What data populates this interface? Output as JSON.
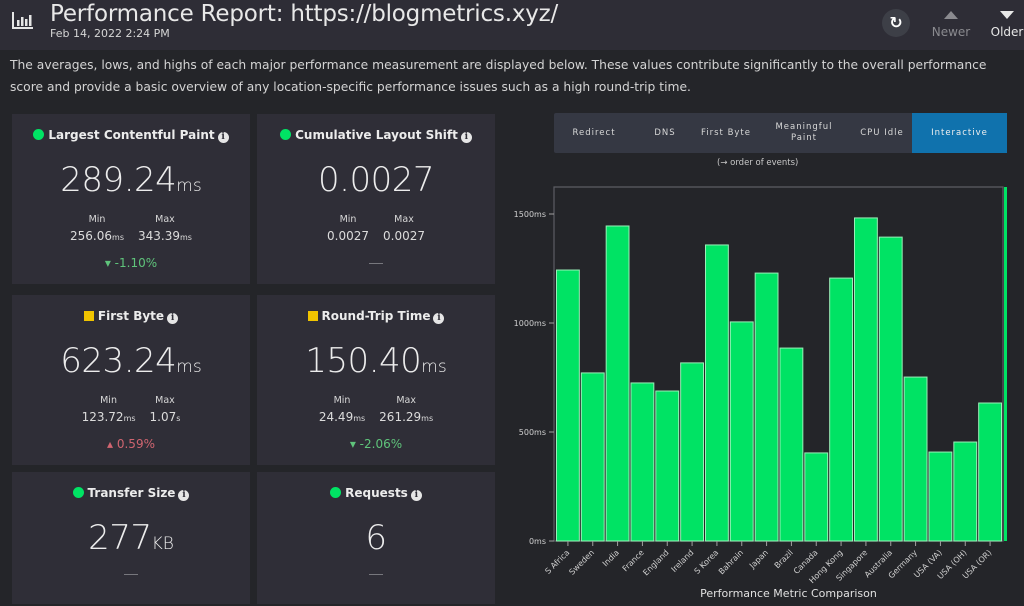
{
  "header": {
    "title": "Performance Report: https://blogmetrics.xyz/",
    "timestamp": "Feb 14, 2022 2:24 PM",
    "icons": {
      "logo": "bar-chart-icon",
      "refresh": "refresh-icon"
    },
    "refresh_glyph": "↻",
    "newer_label": "Newer",
    "older_label": "Older"
  },
  "description": "The averages, lows, and highs of each major performance measurement are displayed below. These values contribute significantly to the overall performance score and provide a basic overview of any location-specific performance issues such as a high round-trip time.",
  "colors": {
    "good": "#00e364",
    "warn": "#f0c400",
    "bad": "#d06570",
    "accent": "#1072ad"
  },
  "metrics": [
    {
      "title": "Largest Contentful Paint",
      "status": "good",
      "value": "289.24",
      "unit": "ms",
      "min_label": "Min",
      "max_label": "Max",
      "min": "256.06",
      "min_unit": "ms",
      "max": "343.39",
      "max_unit": "ms",
      "delta": "▾ -1.10%",
      "delta_trend": "good"
    },
    {
      "title": "Cumulative Layout Shift",
      "status": "good",
      "value": "0.0027",
      "unit": "",
      "min_label": "Min",
      "max_label": "Max",
      "min": "0.0027",
      "min_unit": "",
      "max": "0.0027",
      "max_unit": "",
      "delta": "—",
      "delta_trend": "none"
    },
    {
      "title": "First Byte",
      "status": "warn",
      "value": "623.24",
      "unit": "ms",
      "min_label": "Min",
      "max_label": "Max",
      "min": "123.72",
      "min_unit": "ms",
      "max": "1.07",
      "max_unit": "s",
      "delta": "▴ 0.59%",
      "delta_trend": "bad"
    },
    {
      "title": "Round-Trip Time",
      "status": "warn",
      "value": "150.40",
      "unit": "ms",
      "min_label": "Min",
      "max_label": "Max",
      "min": "24.49",
      "min_unit": "ms",
      "max": "261.29",
      "max_unit": "ms",
      "delta": "▾ -2.06%",
      "delta_trend": "good"
    },
    {
      "title": "Transfer Size",
      "status": "good",
      "value": "277",
      "unit": "KB",
      "delta": "—",
      "delta_trend": "none"
    },
    {
      "title": "Requests",
      "status": "good",
      "value": "6",
      "unit": "",
      "delta": "—",
      "delta_trend": "none"
    }
  ],
  "event_tabs": {
    "items": [
      {
        "label": "Redirect",
        "active": false
      },
      {
        "label": "DNS",
        "active": false
      },
      {
        "label": "First Byte",
        "active": false
      },
      {
        "label": "Meaningful Paint",
        "active": false
      },
      {
        "label": "CPU Idle",
        "active": false
      },
      {
        "label": "Interactive",
        "active": true
      }
    ],
    "caption": "(→ order of events)"
  },
  "chart_data": {
    "type": "bar",
    "title": "",
    "xlabel": "Performance Metric Comparison",
    "ylabel": "",
    "ylim": [
      0,
      1600
    ],
    "yticks": [
      0,
      500,
      1000,
      1500
    ],
    "ytick_labels": [
      "0ms",
      "500ms",
      "1000ms",
      "1500ms"
    ],
    "grid": false,
    "legend": "none",
    "bar_color": "#00e364",
    "categories": [
      "S Africa",
      "Sweden",
      "India",
      "France",
      "England",
      "Ireland",
      "S Korea",
      "Bahrain",
      "Japan",
      "Brazil",
      "Canada",
      "Hong Kong",
      "Singapore",
      "Australia",
      "Germany",
      "USA (VA)",
      "USA (OH)",
      "USA (OR)"
    ],
    "values": [
      1243,
      771,
      1445,
      725,
      688,
      817,
      1358,
      1005,
      1229,
      885,
      404,
      1206,
      1482,
      1394,
      752,
      408,
      454,
      633
    ]
  }
}
